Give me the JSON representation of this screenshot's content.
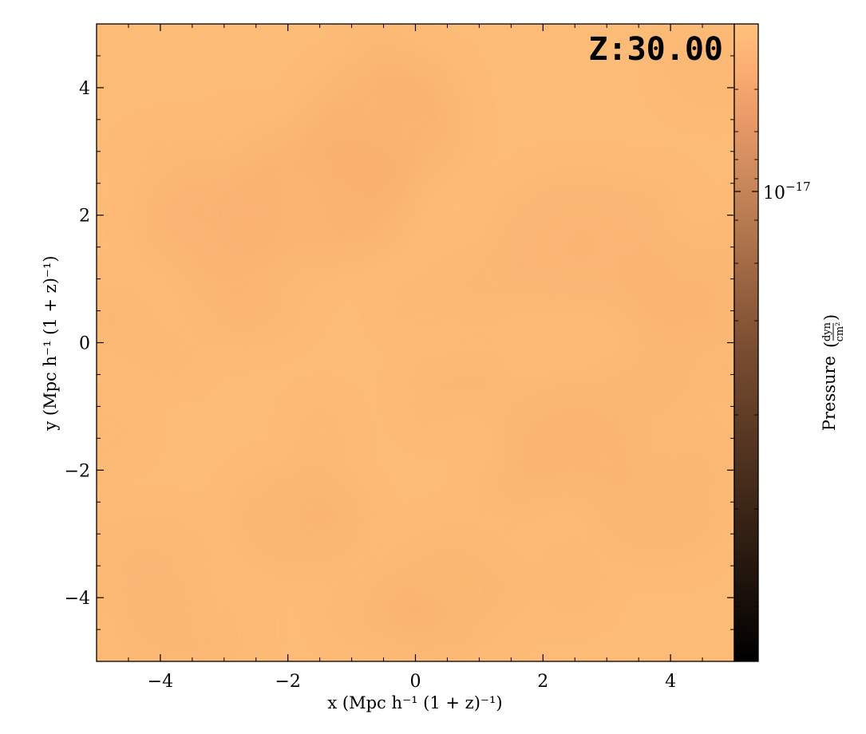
{
  "chart_data": {
    "type": "heatmap",
    "annotation": "Z:30.00",
    "xlabel": "x  (Mpc h⁻¹ (1 + z)⁻¹)",
    "ylabel": "y  (Mpc h⁻¹ (1 + z)⁻¹)",
    "xlim": [
      -5,
      5
    ],
    "ylim": [
      -5,
      5
    ],
    "x_ticks": [
      -4,
      -2,
      0,
      2,
      4
    ],
    "y_ticks": [
      -4,
      -2,
      0,
      2,
      4
    ],
    "x_tick_labels": [
      "−4",
      "−2",
      "0",
      "2",
      "4"
    ],
    "y_tick_labels": [
      "−4",
      "−2",
      "0",
      "2",
      "4"
    ],
    "colormap": "copper",
    "colorbar": {
      "label": "Pressure",
      "unit_numerator": "dyn",
      "unit_denominator": "cm²",
      "scale": "log",
      "tick_label_base": "10",
      "tick_label_exponent": "−17"
    },
    "field_description": "nearly uniform light-orange pressure field with faint darker mottling",
    "colors": {
      "field_base": "#fcbb77",
      "field_dark": "#f7a86a",
      "colormap_top": "#ffc27c",
      "colormap_bottom": "#000000"
    },
    "grid": false
  }
}
